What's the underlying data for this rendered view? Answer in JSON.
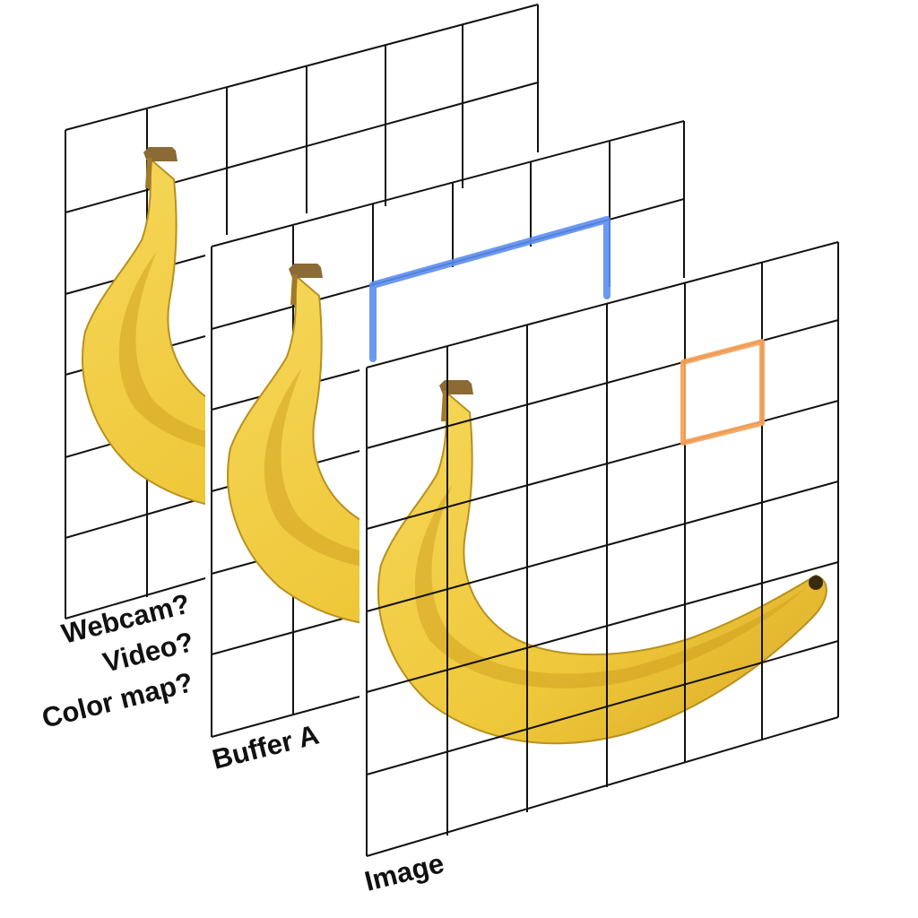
{
  "layers": [
    {
      "id": "extra",
      "labels": [
        "Webcam?",
        "Video?",
        "Color map?"
      ]
    },
    {
      "id": "buffer",
      "labels": [
        "Buffer A"
      ]
    },
    {
      "id": "image",
      "labels": [
        "Image"
      ]
    }
  ],
  "colors": {
    "grid_line": "#111111",
    "neighborhood_highlight": "#5b8def",
    "pixel_highlight": "#f5a35c",
    "banana_body": "#efc83a",
    "banana_shadow": "#c99a1a",
    "banana_stem": "#8b6a35"
  }
}
